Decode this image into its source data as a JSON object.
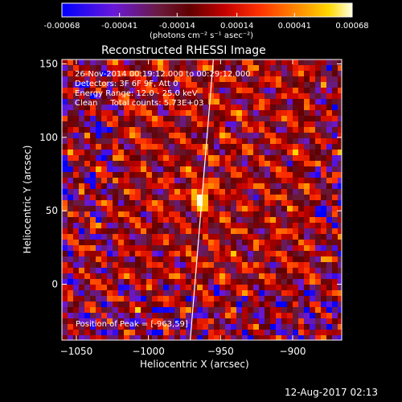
{
  "chart_data": {
    "type": "heatmap",
    "title": "Reconstructed RHESSI Image",
    "xlabel": "Heliocentric X (arcsec)",
    "ylabel": "Heliocentric Y (arcsec)",
    "xlim": [
      -1060,
      -866
    ],
    "ylim": [
      -38,
      153
    ],
    "x_ticks": [
      -1050,
      -1000,
      -950,
      -900
    ],
    "y_ticks": [
      0,
      50,
      100,
      150
    ],
    "colorbar": {
      "range": [
        -0.00068,
        0.00068
      ],
      "tick_values": [
        -0.00068,
        -0.00041,
        -0.00014,
        0.00014,
        0.00041,
        0.00068
      ],
      "tick_labels": [
        "-0.00068",
        "-0.00041",
        "-0.00014",
        "0.00014",
        "0.00041",
        "0.00068"
      ],
      "units": "(photons cm⁻² s⁻¹ asec⁻²)"
    },
    "annotations": [
      "26-Nov-2014 00:19:12.000 to 00:29:12.000",
      "Detectors: 3F 6F 9F, Att 0",
      "Energy Range: 12.0 - 25.0 keV",
      "Clean     Total counts: 5.73E+03"
    ],
    "peak_label": "Position of Peak = [-963,59]",
    "peak": {
      "x": -963,
      "y": 59
    },
    "limb_line": [
      {
        "x": -971,
        "y": -38
      },
      {
        "x": -955,
        "y": 153
      }
    ]
  },
  "footer": {
    "timestamp": "12-Aug-2017 02:13"
  }
}
